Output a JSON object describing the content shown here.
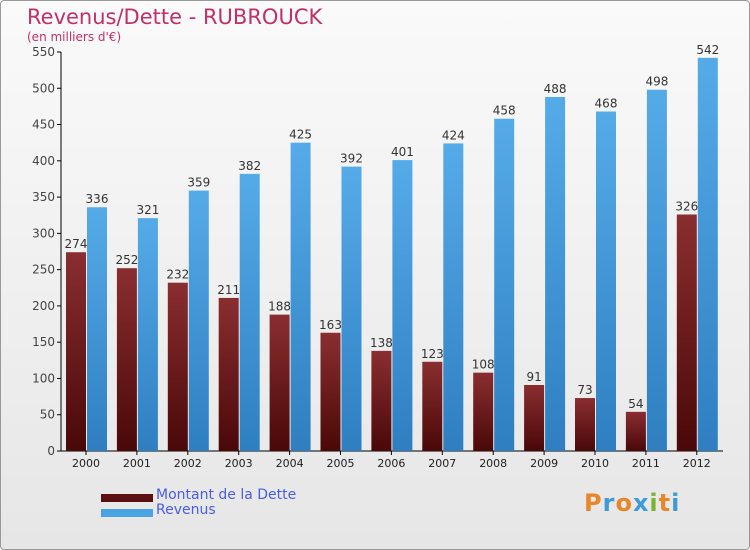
{
  "chart_data": {
    "type": "bar",
    "title": "Revenus/Dette - RUBROUCK",
    "subtitle": "(en milliers d'€)",
    "categories": [
      "2000",
      "2001",
      "2002",
      "2003",
      "2004",
      "2005",
      "2006",
      "2007",
      "2008",
      "2009",
      "2010",
      "2011",
      "2012"
    ],
    "series": [
      {
        "name": "Montant de la Dette",
        "color": "#7a1f20",
        "values": [
          274,
          252,
          232,
          211,
          188,
          163,
          138,
          123,
          108,
          91,
          73,
          54,
          326
        ]
      },
      {
        "name": "Revenus",
        "color": "#4aa3e3",
        "values": [
          336,
          321,
          359,
          382,
          425,
          392,
          401,
          424,
          458,
          488,
          468,
          498,
          542
        ]
      }
    ],
    "ylim": [
      0,
      550
    ],
    "yticks": [
      0,
      50,
      100,
      150,
      200,
      250,
      300,
      350,
      400,
      450,
      500,
      550
    ],
    "grid": false,
    "legend": "bottom-left"
  },
  "logo": "Proxiti"
}
